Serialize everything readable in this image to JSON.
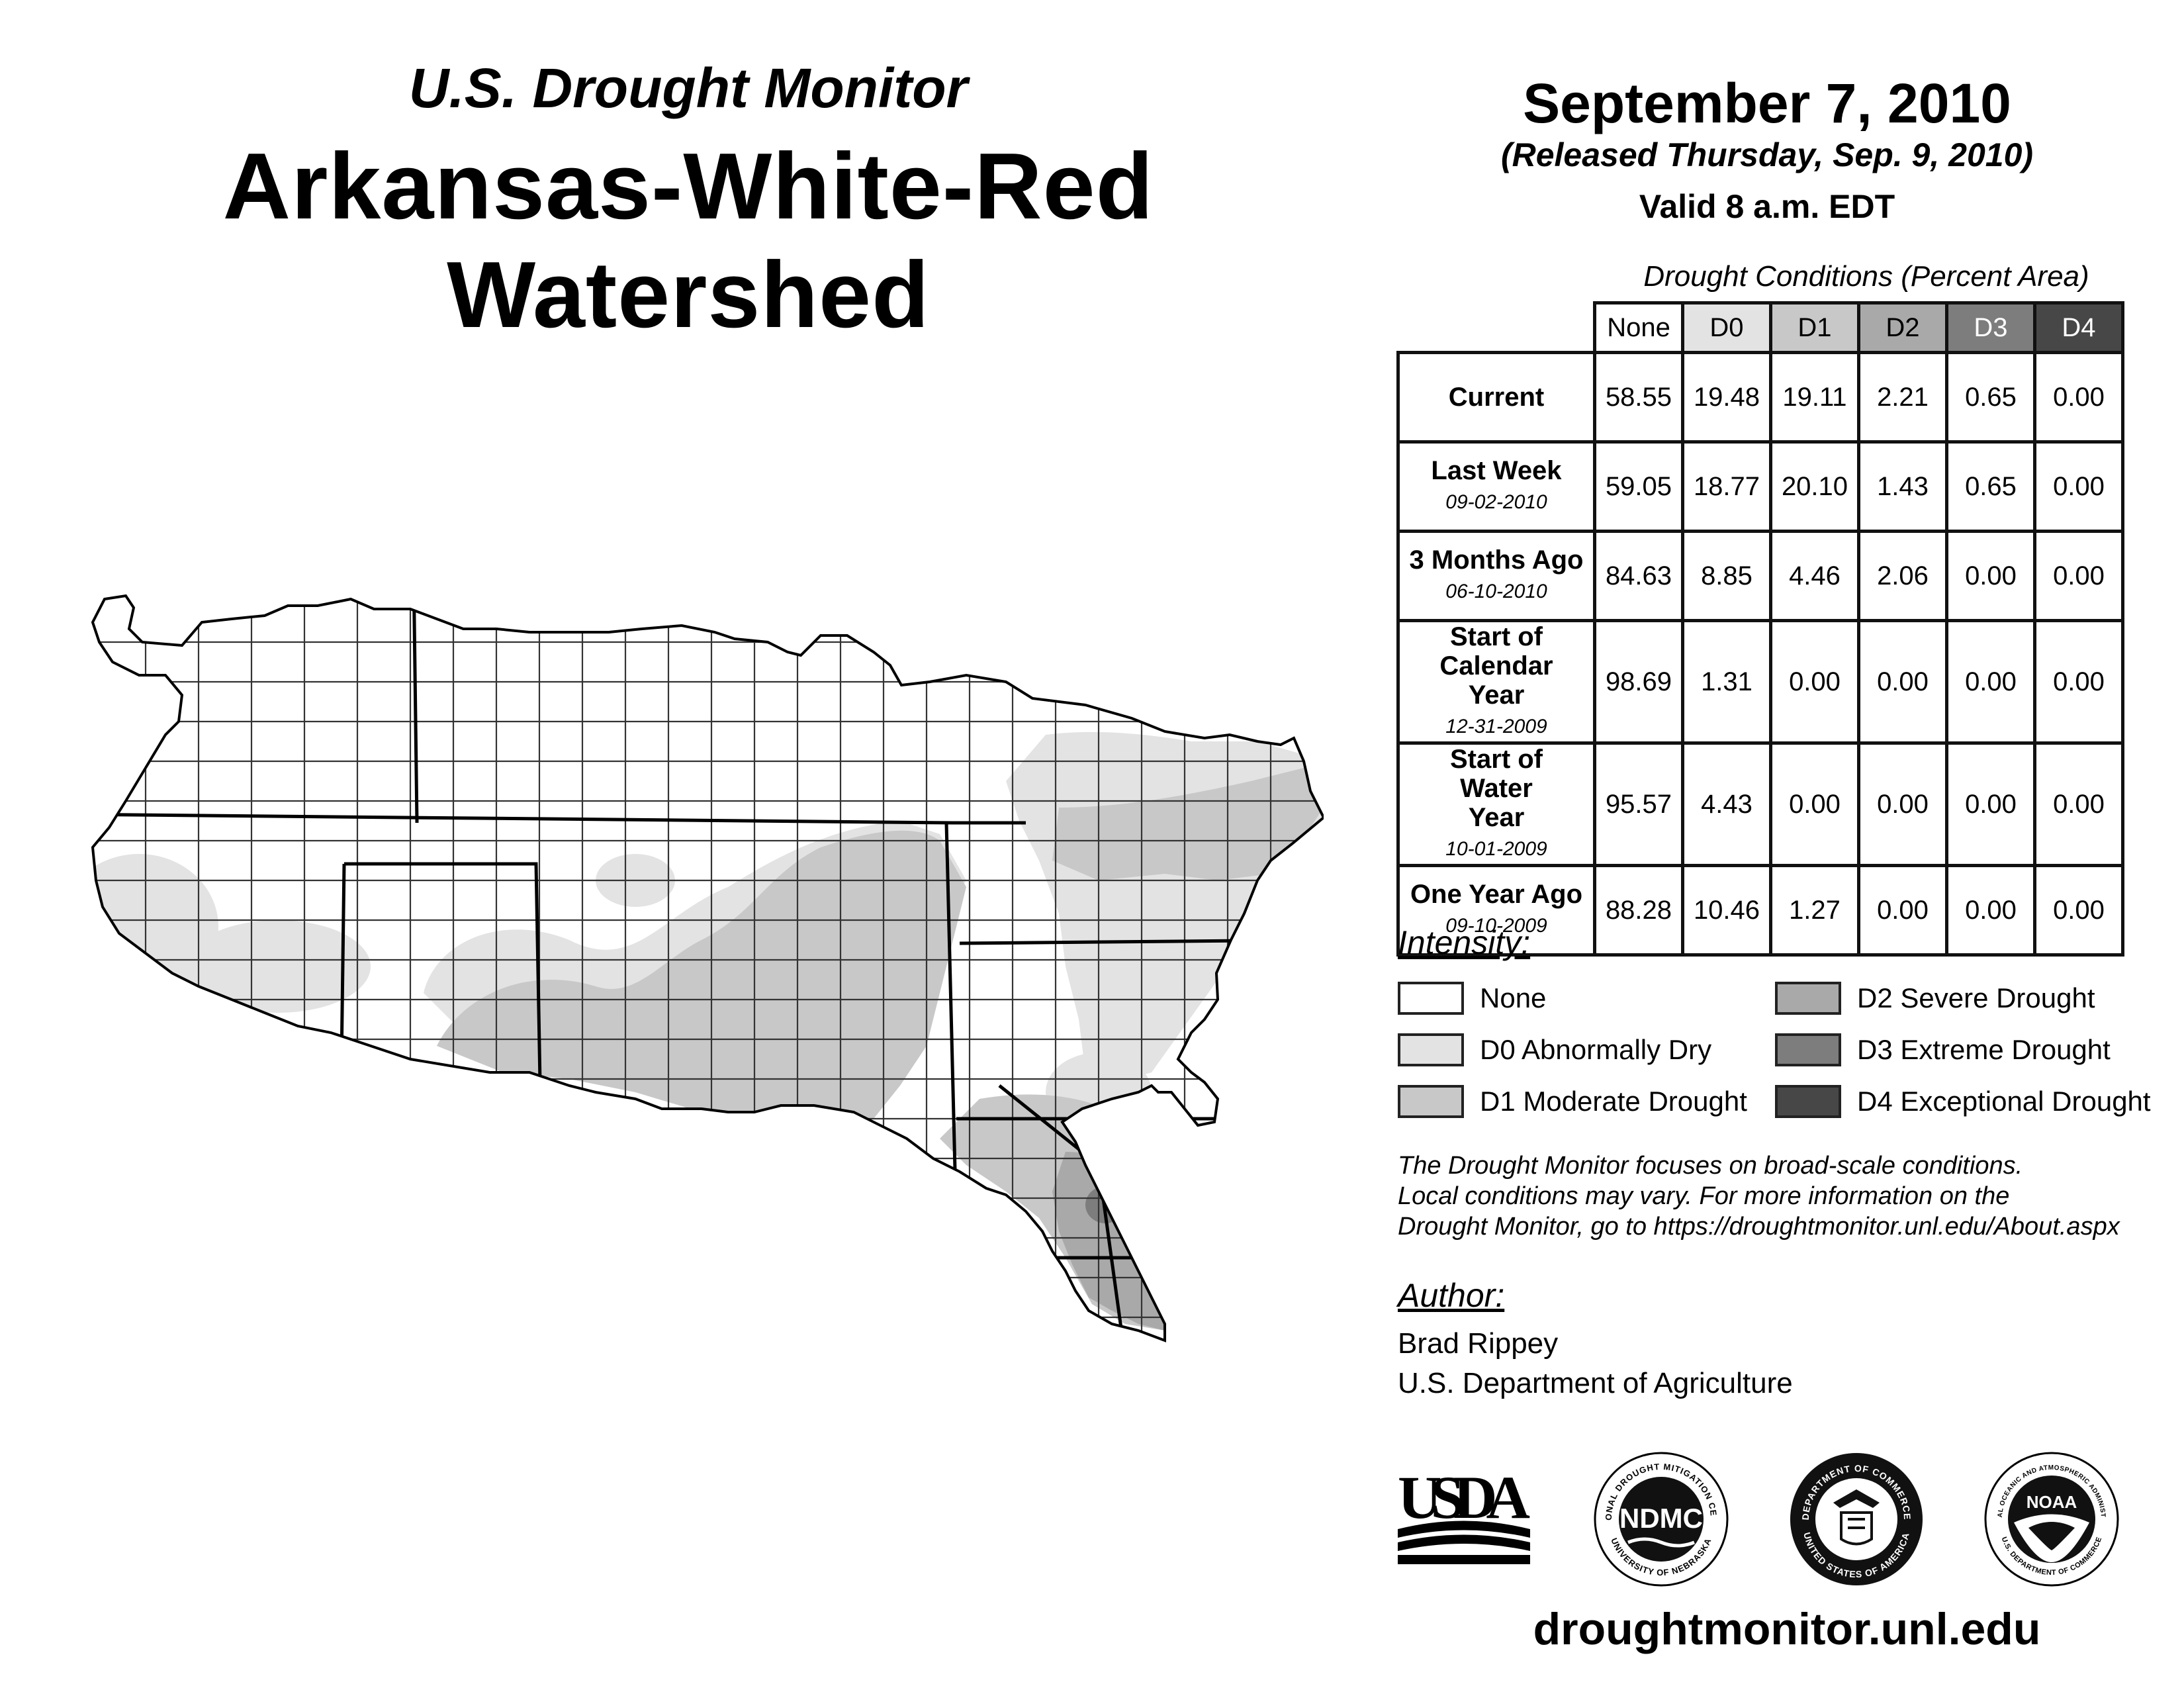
{
  "header": {
    "subtitle": "U.S. Drought Monitor",
    "title": "Arkansas-White-Red Watershed",
    "date": "September 7, 2010",
    "released": "(Released Thursday, Sep. 9, 2010)",
    "valid": "Valid 8 a.m. EDT"
  },
  "table": {
    "caption": "Drought Conditions (Percent Area)",
    "columns": [
      "None",
      "D0",
      "D1",
      "D2",
      "D3",
      "D4"
    ],
    "rows": [
      {
        "label": "Current",
        "date": "",
        "values": [
          "58.55",
          "19.48",
          "19.11",
          "2.21",
          "0.65",
          "0.00"
        ]
      },
      {
        "label": "Last Week",
        "date": "09-02-2010",
        "values": [
          "59.05",
          "18.77",
          "20.10",
          "1.43",
          "0.65",
          "0.00"
        ]
      },
      {
        "label": "3 Months Ago",
        "date": "06-10-2010",
        "values": [
          "84.63",
          "8.85",
          "4.46",
          "2.06",
          "0.00",
          "0.00"
        ]
      },
      {
        "label": "Start of Calendar Year",
        "date": "12-31-2009",
        "values": [
          "98.69",
          "1.31",
          "0.00",
          "0.00",
          "0.00",
          "0.00"
        ]
      },
      {
        "label": "Start of Water Year",
        "date": "10-01-2009",
        "values": [
          "95.57",
          "4.43",
          "0.00",
          "0.00",
          "0.00",
          "0.00"
        ]
      },
      {
        "label": "One Year Ago",
        "date": "09-10-2009",
        "values": [
          "88.28",
          "10.46",
          "1.27",
          "0.00",
          "0.00",
          "0.00"
        ]
      }
    ]
  },
  "legend": {
    "heading": "Intensity:",
    "items": [
      {
        "label": "None",
        "color": "#ffffff"
      },
      {
        "label": "D0 Abnormally Dry",
        "color": "#e3e3e3"
      },
      {
        "label": "D1 Moderate Drought",
        "color": "#c8c8c8"
      },
      {
        "label": "D2 Severe Drought",
        "color": "#a9a9a9"
      },
      {
        "label": "D3 Extreme Drought",
        "color": "#7d7d7d"
      },
      {
        "label": "D4 Exceptional Drought",
        "color": "#474747"
      }
    ]
  },
  "note": {
    "line1": "The Drought Monitor focuses on broad-scale conditions.",
    "line2": "Local conditions may vary. For more information on the",
    "line3": "Drought Monitor, go to https://droughtmonitor.unl.edu/About.aspx"
  },
  "author": {
    "heading": "Author:",
    "name": "Brad Rippey",
    "org": "U.S. Department of Agriculture"
  },
  "logos": {
    "usda": "USDA",
    "ndmc": "NDMC",
    "ndmc_ring_top": "NATIONAL DROUGHT MITIGATION CENTER",
    "ndmc_ring_bottom": "UNIVERSITY OF NEBRASKA",
    "doc_ring_top": "DEPARTMENT OF COMMERCE",
    "doc_ring_bottom": "UNITED STATES OF AMERICA",
    "noaa": "NOAA",
    "noaa_ring_top": "NATIONAL OCEANIC AND ATMOSPHERIC ADMINISTRATION",
    "noaa_ring_bottom": "U.S. DEPARTMENT OF COMMERCE"
  },
  "footer": {
    "url": "droughtmonitor.unl.edu"
  }
}
